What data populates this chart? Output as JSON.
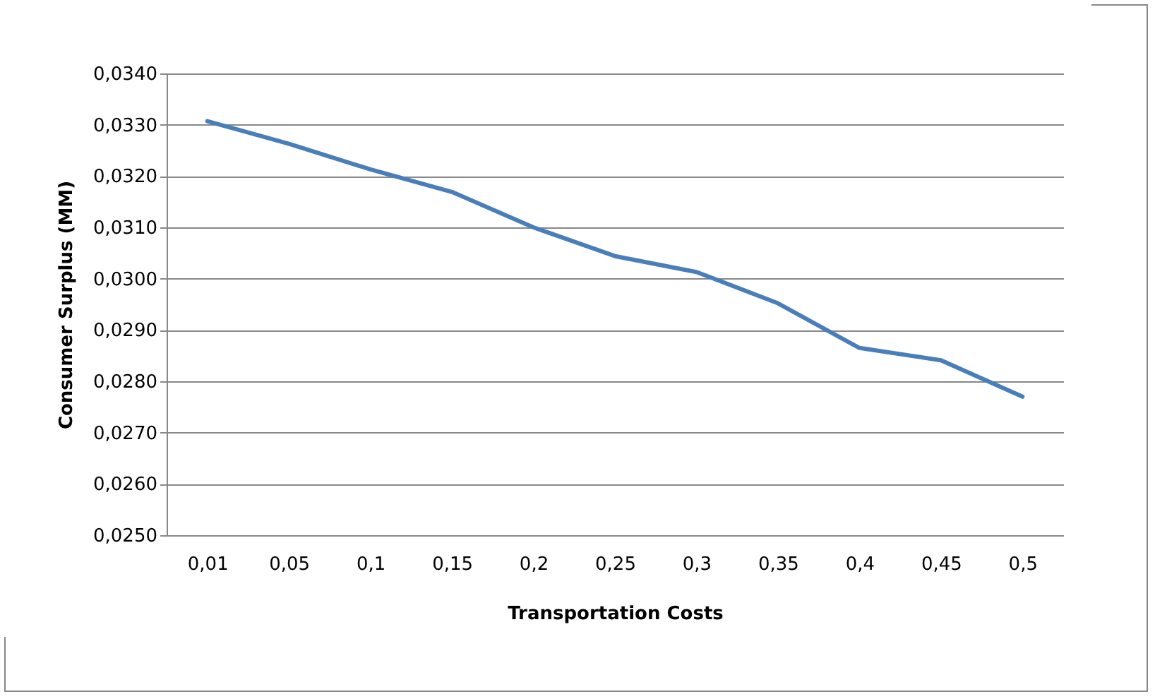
{
  "chart_data": {
    "type": "line",
    "xlabel": "Transportation Costs",
    "ylabel": "Consumer Surplus (MM)",
    "categories": [
      "0,01",
      "0,05",
      "0,1",
      "0,15",
      "0,2",
      "0,25",
      "0,3",
      "0,35",
      "0,4",
      "0,45",
      "0,5"
    ],
    "series": [
      {
        "color": "#4a7ebb",
        "values": [
          0.03307,
          0.03263,
          0.03213,
          0.03169,
          0.031,
          0.03044,
          0.03013,
          0.02952,
          0.02865,
          0.02841,
          0.0277
        ]
      }
    ],
    "ylim": [
      0.025,
      0.034
    ],
    "yticks": [
      {
        "value": 0.025,
        "label": "0,0250"
      },
      {
        "value": 0.026,
        "label": "0,0260"
      },
      {
        "value": 0.027,
        "label": "0,0270"
      },
      {
        "value": 0.028,
        "label": "0,0280"
      },
      {
        "value": 0.029,
        "label": "0,0290"
      },
      {
        "value": 0.03,
        "label": "0,0300"
      },
      {
        "value": 0.031,
        "label": "0,0310"
      },
      {
        "value": 0.032,
        "label": "0,0320"
      },
      {
        "value": 0.033,
        "label": "0,0330"
      },
      {
        "value": 0.034,
        "label": "0,0340"
      }
    ],
    "grid": "y",
    "legend": false,
    "marker": "none",
    "line_style": "solid"
  }
}
